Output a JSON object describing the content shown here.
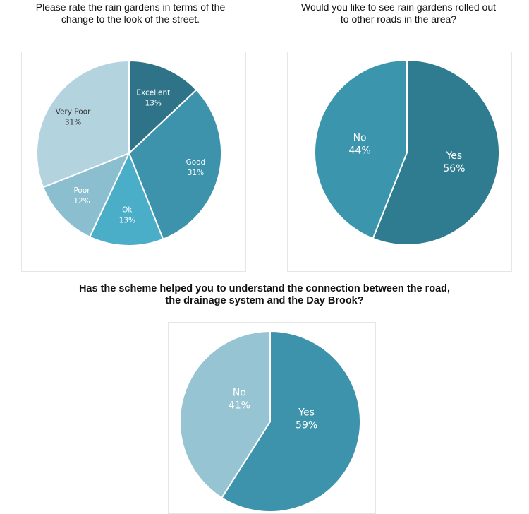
{
  "chart_data": [
    {
      "type": "pie",
      "title_lines": [
        "Please rate the rain gardens in terms of the",
        "change to the look of the street."
      ],
      "labels": [
        "Excellent",
        "Good",
        "Ok",
        "Poor",
        "Very Poor"
      ],
      "values": [
        13,
        31,
        13,
        12,
        31
      ],
      "value_labels": [
        "13%",
        "31%",
        "13%",
        "12%",
        "31%"
      ],
      "colors": [
        "#2e7387",
        "#3d93ab",
        "#4aaec8",
        "#8bbfd0",
        "#b3d3df"
      ]
    },
    {
      "type": "pie",
      "title_lines": [
        "Would you like to see rain gardens rolled out",
        "to other roads in the area?"
      ],
      "labels": [
        "Yes",
        "No"
      ],
      "values": [
        56,
        44
      ],
      "value_labels": [
        "56%",
        "44%"
      ],
      "colors": [
        "#2f7c90",
        "#3b96ad"
      ]
    },
    {
      "type": "pie",
      "title_lines": [
        "Has the scheme helped you to understand the connection between the road,",
        "the drainage system and the Day Brook?"
      ],
      "labels": [
        "Yes",
        "No"
      ],
      "values": [
        59,
        41
      ],
      "value_labels": [
        "59%",
        "41%"
      ],
      "colors": [
        "#3d93ab",
        "#96c4d3"
      ]
    }
  ]
}
